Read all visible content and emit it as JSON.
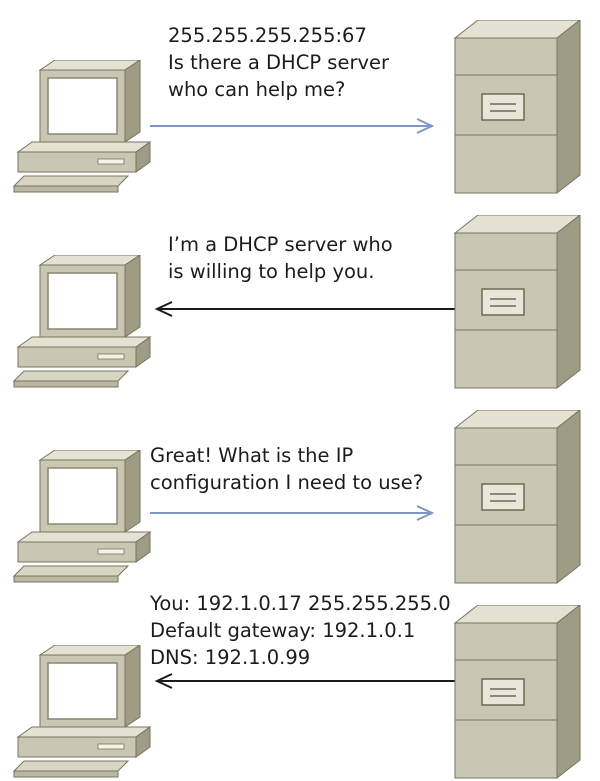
{
  "exchange": [
    {
      "direction": "client-to-server",
      "arrow_color": "#7f96c8",
      "lines": [
        "255.255.255.255:67",
        "Is there a DHCP server",
        "who can help me?"
      ]
    },
    {
      "direction": "server-to-client",
      "arrow_color": "#1a1a1a",
      "lines": [
        "I’m a DHCP server who",
        "is willing to help you."
      ]
    },
    {
      "direction": "client-to-server",
      "arrow_color": "#7f96c8",
      "lines": [
        "Great!  What is the IP",
        "configuration I need to use?"
      ]
    },
    {
      "direction": "server-to-client",
      "arrow_color": "#1a1a1a",
      "lines": [
        "You: 192.1.0.17 255.255.255.0",
        "Default gateway: 192.1.0.1",
        "DNS: 192.1.0.99"
      ]
    }
  ],
  "icons": {
    "client": "desktop-computer-icon",
    "server": "tower-server-icon"
  },
  "colors": {
    "device_face": "#c9c6b1",
    "device_side": "#9f9c86",
    "device_top": "#e4e2d2",
    "screen": "#ffffff"
  }
}
